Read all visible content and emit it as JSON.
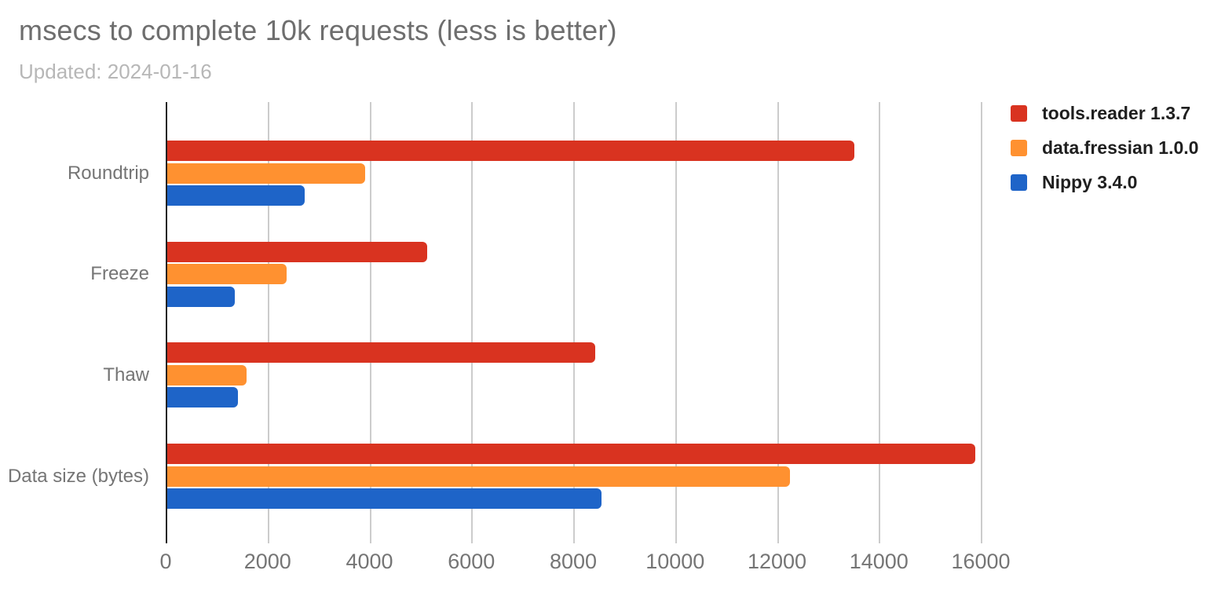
{
  "header": {
    "title": "msecs to complete 10k requests (less is better)",
    "subtitle": "Updated: 2024-01-16"
  },
  "chart_data": {
    "type": "bar",
    "orientation": "horizontal",
    "title": "msecs to complete 10k requests (less is better)",
    "subtitle": "Updated: 2024-01-16",
    "categories": [
      "Roundtrip",
      "Freeze",
      "Thaw",
      "Data size (bytes)"
    ],
    "series": [
      {
        "name": "tools.reader 1.3.7",
        "color": "#D93320",
        "values": [
          13490,
          5100,
          8400,
          15860
        ]
      },
      {
        "name": "data.fressian 1.0.0",
        "color": "#FF9130",
        "values": [
          3890,
          2350,
          1560,
          12230
        ]
      },
      {
        "name": "Nippy 3.4.0",
        "color": "#1E64C8",
        "values": [
          2700,
          1330,
          1380,
          8530
        ]
      }
    ],
    "x_axis": {
      "min": 0,
      "max": 16000,
      "ticks": [
        0,
        2000,
        4000,
        6000,
        8000,
        10000,
        12000,
        14000,
        16000
      ]
    },
    "grid": true,
    "legend_position": "right",
    "colors": {
      "gridline": "#CCCCCC",
      "axis_line": "#212121",
      "axis_label": "#757575",
      "title": "#6E6E6E",
      "subtitle": "#B7B7B7",
      "legend_text": "#1F1F1F",
      "background": "#FFFFFF"
    }
  }
}
